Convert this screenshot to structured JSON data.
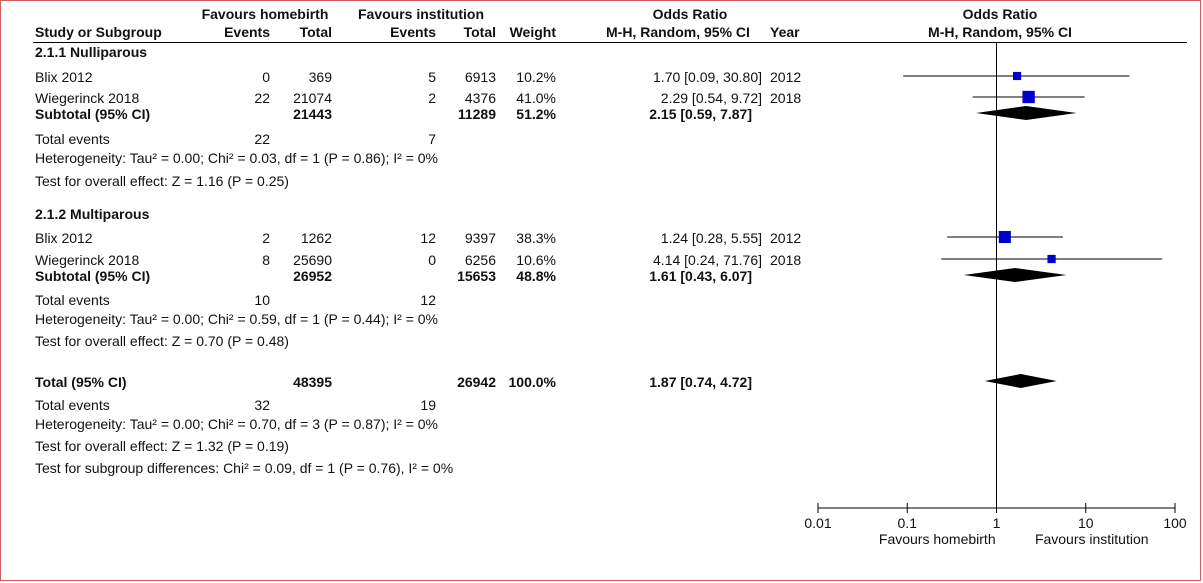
{
  "header": {
    "group_homebirth": "Favours homebirth",
    "group_institution": "Favours institution",
    "odds_ratio_title": "Odds Ratio",
    "col_study": "Study or Subgroup",
    "col_events": "Events",
    "col_total": "Total",
    "col_weight": "Weight",
    "col_method": "M-H, Random, 95% CI",
    "col_year": "Year",
    "plot_title": "Odds Ratio",
    "plot_method": "M-H, Random, 95% CI"
  },
  "subgroups": [
    {
      "title": "2.1.1 Nulliparous",
      "studies": [
        {
          "name": "Blix 2012",
          "events_home": "0",
          "total_home": "369",
          "events_inst": "5",
          "total_inst": "6913",
          "weight": "10.2%",
          "ci_text": "1.70 [0.09, 30.80]",
          "year": "2012"
        },
        {
          "name": "Wiegerinck 2018",
          "events_home": "22",
          "total_home": "21074",
          "events_inst": "2",
          "total_inst": "4376",
          "weight": "41.0%",
          "ci_text": "2.29 [0.54, 9.72]",
          "year": "2018"
        }
      ],
      "subtotal": {
        "label": "Subtotal (95% CI)",
        "total_home": "21443",
        "total_inst": "11289",
        "weight": "51.2%",
        "ci_text": "2.15 [0.59, 7.87]"
      },
      "events": {
        "label": "Total events",
        "home": "22",
        "inst": "7"
      },
      "heterogeneity": "Heterogeneity: Tau² = 0.00; Chi² = 0.03, df = 1 (P = 0.86); I² = 0%",
      "overall": "Test for overall effect: Z = 1.16 (P = 0.25)"
    },
    {
      "title": "2.1.2 Multiparous",
      "studies": [
        {
          "name": "Blix 2012",
          "events_home": "2",
          "total_home": "1262",
          "events_inst": "12",
          "total_inst": "9397",
          "weight": "38.3%",
          "ci_text": "1.24 [0.28, 5.55]",
          "year": "2012"
        },
        {
          "name": "Wiegerinck 2018",
          "events_home": "8",
          "total_home": "25690",
          "events_inst": "0",
          "total_inst": "6256",
          "weight": "10.6%",
          "ci_text": "4.14 [0.24, 71.76]",
          "year": "2018"
        }
      ],
      "subtotal": {
        "label": "Subtotal (95% CI)",
        "total_home": "26952",
        "total_inst": "15653",
        "weight": "48.8%",
        "ci_text": "1.61 [0.43, 6.07]"
      },
      "events": {
        "label": "Total events",
        "home": "10",
        "inst": "12"
      },
      "heterogeneity": "Heterogeneity: Tau² = 0.00; Chi² = 0.59, df = 1 (P = 0.44); I² = 0%",
      "overall": "Test for overall effect: Z = 0.70 (P = 0.48)"
    }
  ],
  "total": {
    "label": "Total (95% CI)",
    "total_home": "48395",
    "total_inst": "26942",
    "weight": "100.0%",
    "ci_text": "1.87 [0.74, 4.72]",
    "events_label": "Total events",
    "events_home": "32",
    "events_inst": "19",
    "heterogeneity": "Heterogeneity: Tau² = 0.00; Chi² = 0.70, df = 3 (P = 0.87); I² = 0%",
    "overall": "Test for overall effect: Z = 1.32 (P = 0.19)",
    "subgroup_diff": "Test for subgroup differences: Chi² = 0.09, df = 1 (P = 0.76), I² = 0%"
  },
  "axis": {
    "favours_left": "Favours homebirth",
    "favours_right": "Favours institution"
  },
  "chart_data": {
    "type": "forest",
    "scale": "log",
    "xlim": [
      0.01,
      100
    ],
    "null_line": 1,
    "ticks": [
      {
        "value": 0.01,
        "label": "0.01"
      },
      {
        "value": 0.1,
        "label": "0.1"
      },
      {
        "value": 1,
        "label": "1"
      },
      {
        "value": 10,
        "label": "10"
      },
      {
        "value": 100,
        "label": "100"
      }
    ],
    "marker_color": "#0000cc",
    "diamond_color": "#000000",
    "studies": [
      {
        "name": "Blix 2012",
        "subgroup": "2.1.1 Nulliparous",
        "or": 1.7,
        "lo": 0.09,
        "hi": 30.8,
        "weight": 10.2
      },
      {
        "name": "Wiegerinck 2018",
        "subgroup": "2.1.1 Nulliparous",
        "or": 2.29,
        "lo": 0.54,
        "hi": 9.72,
        "weight": 41.0
      },
      {
        "name": "Blix 2012",
        "subgroup": "2.1.2 Multiparous",
        "or": 1.24,
        "lo": 0.28,
        "hi": 5.55,
        "weight": 38.3
      },
      {
        "name": "Wiegerinck 2018",
        "subgroup": "2.1.2 Multiparous",
        "or": 4.14,
        "lo": 0.24,
        "hi": 71.76,
        "weight": 10.6
      }
    ],
    "diamonds": [
      {
        "name": "Subtotal (95% CI)",
        "subgroup": "2.1.1 Nulliparous",
        "or": 2.15,
        "lo": 0.59,
        "hi": 7.87
      },
      {
        "name": "Subtotal (95% CI)",
        "subgroup": "2.1.2 Multiparous",
        "or": 1.61,
        "lo": 0.43,
        "hi": 6.07
      },
      {
        "name": "Total (95% CI)",
        "subgroup": "overall",
        "or": 1.87,
        "lo": 0.74,
        "hi": 4.72
      }
    ]
  }
}
